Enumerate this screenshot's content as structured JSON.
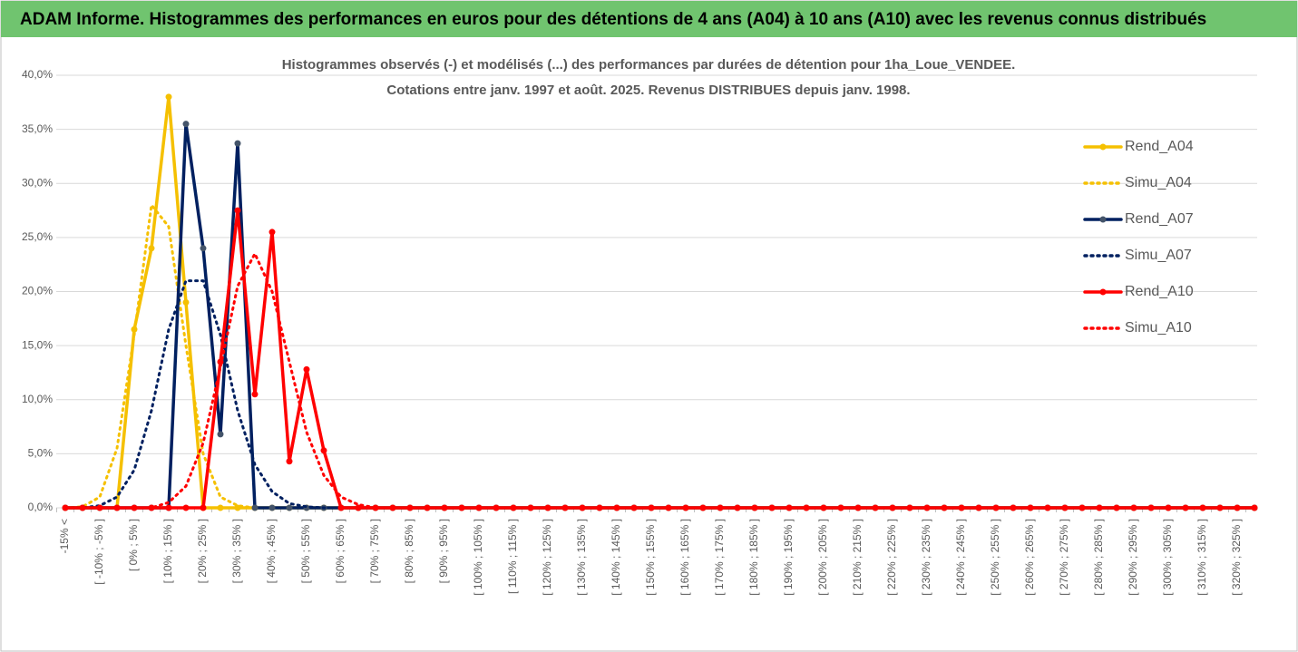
{
  "header": {
    "title": "ADAM Informe. Histogrammes des performances en euros pour des détentions de 4 ans (A04) à 10 ans (A10) avec les revenus connus distribués"
  },
  "chart_data": {
    "type": "line",
    "title": [
      "Histogrammes observés (-) et modélisés (...) des performances par durées de détention pour 1ha_Loue_VENDEE.",
      "Cotations entre janv. 1997 et août. 2025. Revenus DISTRIBUES depuis janv. 1998."
    ],
    "categories": [
      "-15% <",
      null,
      "[ -10% ; -5% ]",
      null,
      "[ 0% ; 5% ]",
      null,
      "[ 10% ; 15% ]",
      null,
      "[ 20% ; 25% ]",
      null,
      "[ 30% ; 35% ]",
      null,
      "[ 40% ; 45% ]",
      null,
      "[ 50% ; 55% ]",
      null,
      "[ 60% ; 65% ]",
      null,
      "[ 70% ; 75% ]",
      null,
      "[ 80% ; 85% ]",
      null,
      "[ 90% ; 95% ]",
      null,
      "[ 100% ; 105% ]",
      null,
      "[ 110% ; 115% ]",
      null,
      "[ 120% ; 125% ]",
      null,
      "[ 130% ; 135% ]",
      null,
      "[ 140% ; 145% ]",
      null,
      "[ 150% ; 155% ]",
      null,
      "[ 160% ; 165% ]",
      null,
      "[ 170% ; 175% ]",
      null,
      "[ 180% ; 185% ]",
      null,
      "[ 190% ; 195% ]",
      null,
      "[ 200% ; 205% ]",
      null,
      "[ 210% ; 215% ]",
      null,
      "[ 220% ; 225% ]",
      null,
      "[ 230% ; 235% ]",
      null,
      "[ 240% ; 245% ]",
      null,
      "[ 250% ; 255% ]",
      null,
      "[ 260% ; 265% ]",
      null,
      "[ 270% ; 275% ]",
      null,
      "[ 280% ; 285% ]",
      null,
      "[ 290% ; 295% ]",
      null,
      "[ 300% ; 305% ]",
      null,
      "[ 310% ; 315% ]",
      null,
      "[ 320% ; 325% ]",
      null
    ],
    "series": [
      {
        "name": "Rend_A04",
        "color": "#f5c000",
        "style": "solid",
        "values": [
          0,
          0,
          0,
          0,
          16.5,
          24,
          38,
          19,
          0,
          0,
          0,
          0,
          0,
          0,
          0,
          0,
          0,
          0,
          0,
          0,
          0,
          0,
          0,
          0,
          0,
          0,
          0,
          0,
          0,
          0,
          0,
          0,
          0,
          0,
          0,
          0,
          0,
          0,
          0,
          0,
          0,
          0,
          0,
          0,
          0,
          0,
          0,
          0,
          0,
          0,
          0,
          0,
          0,
          0,
          0,
          0,
          0,
          0,
          0,
          0,
          0,
          0,
          0,
          0,
          0,
          0,
          0,
          0,
          0,
          0
        ]
      },
      {
        "name": "Simu_A04",
        "color": "#f5c000",
        "style": "dotted",
        "values": [
          0,
          0.1,
          1,
          5.5,
          16,
          28,
          26,
          15,
          5,
          1,
          0.2,
          0,
          0,
          0,
          0,
          0,
          0,
          0,
          0,
          0,
          0,
          0,
          0,
          0,
          0,
          0,
          0,
          0,
          0,
          0,
          0,
          0,
          0,
          0,
          0,
          0,
          0,
          0,
          0,
          0,
          0,
          0,
          0,
          0,
          0,
          0,
          0,
          0,
          0,
          0,
          0,
          0,
          0,
          0,
          0,
          0,
          0,
          0,
          0,
          0,
          0,
          0,
          0,
          0,
          0,
          0,
          0,
          0,
          0,
          0
        ]
      },
      {
        "name": "Rend_A07",
        "color": "#002060",
        "style": "solid",
        "values": [
          0,
          0,
          0,
          0,
          0,
          0,
          0,
          35.5,
          24,
          6.8,
          33.7,
          0,
          0,
          0,
          0,
          0,
          0,
          0,
          0,
          0,
          0,
          0,
          0,
          0,
          0,
          0,
          0,
          0,
          0,
          0,
          0,
          0,
          0,
          0,
          0,
          0,
          0,
          0,
          0,
          0,
          0,
          0,
          0,
          0,
          0,
          0,
          0,
          0,
          0,
          0,
          0,
          0,
          0,
          0,
          0,
          0,
          0,
          0,
          0,
          0,
          0,
          0,
          0,
          0,
          0,
          0,
          0,
          0,
          0,
          0
        ]
      },
      {
        "name": "Simu_A07",
        "color": "#002060",
        "style": "dotted",
        "values": [
          0,
          0,
          0.2,
          1,
          3.5,
          9,
          16.5,
          21,
          21,
          16,
          9,
          4,
          1.5,
          0.4,
          0.1,
          0,
          0,
          0,
          0,
          0,
          0,
          0,
          0,
          0,
          0,
          0,
          0,
          0,
          0,
          0,
          0,
          0,
          0,
          0,
          0,
          0,
          0,
          0,
          0,
          0,
          0,
          0,
          0,
          0,
          0,
          0,
          0,
          0,
          0,
          0,
          0,
          0,
          0,
          0,
          0,
          0,
          0,
          0,
          0,
          0,
          0,
          0,
          0,
          0,
          0,
          0,
          0,
          0,
          0,
          0
        ]
      },
      {
        "name": "Rend_A10",
        "color": "#ff0000",
        "style": "solid",
        "values": [
          0,
          0,
          0,
          0,
          0,
          0,
          0,
          0,
          0,
          13.5,
          27.5,
          10.5,
          25.5,
          4.3,
          12.8,
          5.3,
          0,
          0,
          0,
          0,
          0,
          0,
          0,
          0,
          0,
          0,
          0,
          0,
          0,
          0,
          0,
          0,
          0,
          0,
          0,
          0,
          0,
          0,
          0,
          0,
          0,
          0,
          0,
          0,
          0,
          0,
          0,
          0,
          0,
          0,
          0,
          0,
          0,
          0,
          0,
          0,
          0,
          0,
          0,
          0,
          0,
          0,
          0,
          0,
          0,
          0,
          0,
          0,
          0,
          0
        ]
      },
      {
        "name": "Simu_A10",
        "color": "#ff0000",
        "style": "dotted",
        "values": [
          0,
          0,
          0,
          0,
          0,
          0,
          0.5,
          2,
          6,
          13,
          20.5,
          23.5,
          20,
          13.5,
          7,
          3,
          1,
          0.3,
          0,
          0,
          0,
          0,
          0,
          0,
          0,
          0,
          0,
          0,
          0,
          0,
          0,
          0,
          0,
          0,
          0,
          0,
          0,
          0,
          0,
          0,
          0,
          0,
          0,
          0,
          0,
          0,
          0,
          0,
          0,
          0,
          0,
          0,
          0,
          0,
          0,
          0,
          0,
          0,
          0,
          0,
          0,
          0,
          0,
          0,
          0,
          0,
          0,
          0,
          0,
          0
        ]
      }
    ],
    "ylim": [
      0,
      40
    ],
    "yticks": [
      {
        "value": 0,
        "label": "0,0%"
      },
      {
        "value": 5,
        "label": "5,0%"
      },
      {
        "value": 10,
        "label": "10,0%"
      },
      {
        "value": 15,
        "label": "15,0%"
      },
      {
        "value": 20,
        "label": "20,0%"
      },
      {
        "value": 25,
        "label": "25,0%"
      },
      {
        "value": 30,
        "label": "30,0%"
      },
      {
        "value": 35,
        "label": "35,0%"
      },
      {
        "value": 40,
        "label": "40,0%"
      }
    ],
    "grid": true,
    "legend": "right"
  }
}
